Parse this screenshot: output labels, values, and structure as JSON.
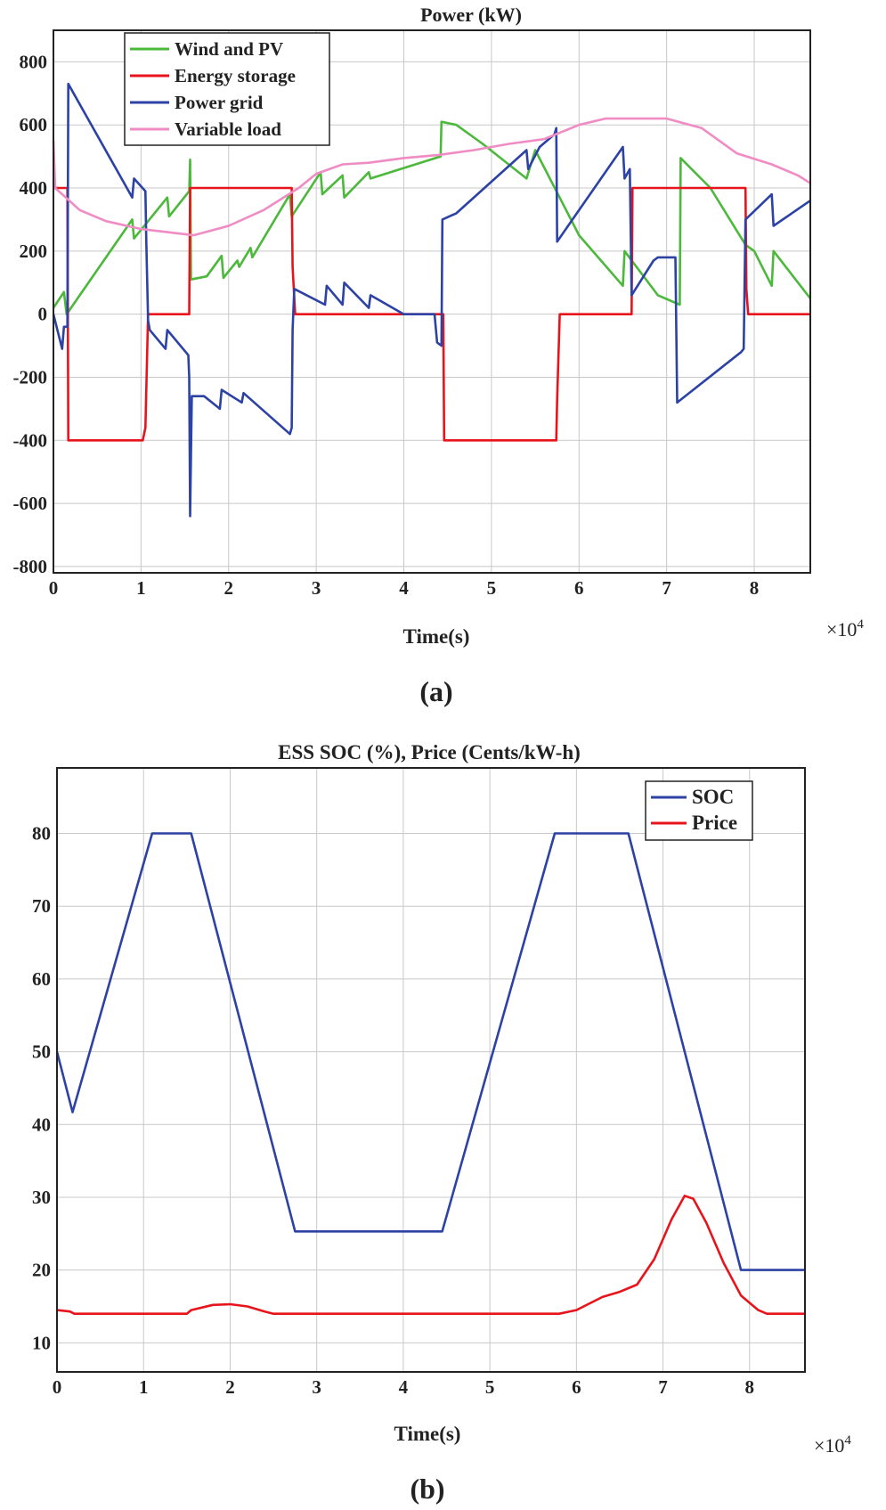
{
  "chart_data": [
    {
      "type": "line",
      "panel_label": "(a)",
      "title": "Power  (kW)",
      "xlabel": "Time(s)",
      "x_exponent_label": "×10",
      "x_exponent_power": "4",
      "xlim": [
        0,
        8.64
      ],
      "ylim": [
        -820,
        900
      ],
      "xticks": [
        0,
        1,
        2,
        3,
        4,
        5,
        6,
        7,
        8
      ],
      "xtick_labels": [
        "0",
        "1",
        "2",
        "3",
        "4",
        "5",
        "6",
        "7",
        "8"
      ],
      "yticks": [
        -800,
        -600,
        -400,
        -200,
        0,
        200,
        400,
        600,
        800
      ],
      "ytick_labels": [
        "-800",
        "-600",
        "-400",
        "-200",
        "0",
        "200",
        "400",
        "600",
        "800"
      ],
      "grid": true,
      "legend_position": "top-left",
      "series": [
        {
          "name": "Wind and PV",
          "color": "#4cb83c",
          "points": [
            [
              0,
              20
            ],
            [
              0.12,
              70
            ],
            [
              0.15,
              0
            ],
            [
              0.9,
              300
            ],
            [
              0.92,
              240
            ],
            [
              1.3,
              370
            ],
            [
              1.32,
              310
            ],
            [
              1.55,
              390
            ],
            [
              1.56,
              490
            ],
            [
              1.57,
              110
            ],
            [
              1.75,
              120
            ],
            [
              1.92,
              185
            ],
            [
              1.94,
              115
            ],
            [
              2.1,
              170
            ],
            [
              2.12,
              150
            ],
            [
              2.25,
              210
            ],
            [
              2.27,
              180
            ],
            [
              2.7,
              380
            ],
            [
              2.72,
              310
            ],
            [
              3.05,
              450
            ],
            [
              3.07,
              380
            ],
            [
              3.3,
              440
            ],
            [
              3.32,
              370
            ],
            [
              3.6,
              450
            ],
            [
              3.62,
              430
            ],
            [
              4.42,
              500
            ],
            [
              4.43,
              610
            ],
            [
              4.6,
              600
            ],
            [
              4.9,
              540
            ],
            [
              5.4,
              430
            ],
            [
              5.5,
              520
            ],
            [
              6.0,
              250
            ],
            [
              6.5,
              90
            ],
            [
              6.52,
              200
            ],
            [
              6.9,
              60
            ],
            [
              7.15,
              30
            ],
            [
              7.16,
              495
            ],
            [
              7.5,
              400
            ],
            [
              7.9,
              220
            ],
            [
              8.0,
              200
            ],
            [
              8.2,
              90
            ],
            [
              8.22,
              200
            ],
            [
              8.64,
              50
            ]
          ]
        },
        {
          "name": "Energy storage",
          "color": "#e8141c",
          "points": [
            [
              0,
              400
            ],
            [
              0.16,
              400
            ],
            [
              0.17,
              -400
            ],
            [
              1.02,
              -400
            ],
            [
              1.05,
              -360
            ],
            [
              1.08,
              0
            ],
            [
              1.55,
              0
            ],
            [
              1.56,
              400
            ],
            [
              2.72,
              400
            ],
            [
              2.73,
              150
            ],
            [
              2.76,
              0
            ],
            [
              4.45,
              0
            ],
            [
              4.46,
              -400
            ],
            [
              5.74,
              -400
            ],
            [
              5.75,
              -270
            ],
            [
              5.78,
              0
            ],
            [
              6.6,
              0
            ],
            [
              6.61,
              400
            ],
            [
              7.9,
              400
            ],
            [
              7.91,
              80
            ],
            [
              7.93,
              0
            ],
            [
              8.64,
              0
            ]
          ]
        },
        {
          "name": "Power grid",
          "color": "#2c42a4",
          "points": [
            [
              0,
              0
            ],
            [
              0.1,
              -110
            ],
            [
              0.12,
              -40
            ],
            [
              0.16,
              -40
            ],
            [
              0.17,
              730
            ],
            [
              0.9,
              370
            ],
            [
              0.92,
              430
            ],
            [
              1.05,
              390
            ],
            [
              1.06,
              230
            ],
            [
              1.08,
              -20
            ],
            [
              1.1,
              -50
            ],
            [
              1.28,
              -110
            ],
            [
              1.3,
              -50
            ],
            [
              1.54,
              -130
            ],
            [
              1.55,
              -200
            ],
            [
              1.56,
              -640
            ],
            [
              1.58,
              -260
            ],
            [
              1.72,
              -260
            ],
            [
              1.9,
              -300
            ],
            [
              1.92,
              -240
            ],
            [
              2.15,
              -280
            ],
            [
              2.17,
              -250
            ],
            [
              2.7,
              -380
            ],
            [
              2.72,
              -360
            ],
            [
              2.73,
              -50
            ],
            [
              2.75,
              80
            ],
            [
              3.1,
              30
            ],
            [
              3.12,
              90
            ],
            [
              3.3,
              30
            ],
            [
              3.32,
              100
            ],
            [
              3.6,
              20
            ],
            [
              3.62,
              60
            ],
            [
              4.0,
              0
            ],
            [
              4.35,
              0
            ],
            [
              4.38,
              -90
            ],
            [
              4.43,
              -100
            ],
            [
              4.44,
              300
            ],
            [
              4.6,
              320
            ],
            [
              5.4,
              520
            ],
            [
              5.42,
              460
            ],
            [
              5.55,
              530
            ],
            [
              5.72,
              570
            ],
            [
              5.74,
              590
            ],
            [
              5.75,
              230
            ],
            [
              6.5,
              530
            ],
            [
              6.52,
              430
            ],
            [
              6.58,
              460
            ],
            [
              6.6,
              60
            ],
            [
              6.85,
              170
            ],
            [
              6.9,
              180
            ],
            [
              7.1,
              180
            ],
            [
              7.12,
              -280
            ],
            [
              7.85,
              -120
            ],
            [
              7.88,
              -110
            ],
            [
              7.9,
              300
            ],
            [
              8.2,
              380
            ],
            [
              8.22,
              280
            ],
            [
              8.64,
              360
            ]
          ]
        },
        {
          "name": "Variable load",
          "color": "#f08cc4",
          "points": [
            [
              0,
              550
            ],
            [
              0.02,
              400
            ],
            [
              0.3,
              330
            ],
            [
              0.6,
              295
            ],
            [
              1.0,
              270
            ],
            [
              1.3,
              260
            ],
            [
              1.6,
              250
            ],
            [
              2.0,
              280
            ],
            [
              2.4,
              330
            ],
            [
              2.8,
              400
            ],
            [
              3.0,
              445
            ],
            [
              3.3,
              475
            ],
            [
              3.6,
              480
            ],
            [
              4.0,
              495
            ],
            [
              4.4,
              505
            ],
            [
              4.8,
              520
            ],
            [
              5.2,
              540
            ],
            [
              5.6,
              555
            ],
            [
              6.0,
              600
            ],
            [
              6.3,
              620
            ],
            [
              6.6,
              620
            ],
            [
              7.0,
              620
            ],
            [
              7.4,
              590
            ],
            [
              7.8,
              510
            ],
            [
              8.2,
              475
            ],
            [
              8.5,
              440
            ],
            [
              8.64,
              415
            ]
          ]
        }
      ]
    },
    {
      "type": "line",
      "panel_label": "(b)",
      "title": "ESS SOC (%), Price (Cents/kW-h)",
      "xlabel": "Time(s)",
      "x_exponent_label": "×10",
      "x_exponent_power": "4",
      "xlim": [
        0,
        8.64
      ],
      "ylim": [
        6,
        89
      ],
      "xticks": [
        0,
        1,
        2,
        3,
        4,
        5,
        6,
        7,
        8
      ],
      "xtick_labels": [
        "0",
        "1",
        "2",
        "3",
        "4",
        "5",
        "6",
        "7",
        "8"
      ],
      "yticks": [
        10,
        20,
        30,
        40,
        50,
        60,
        70,
        80
      ],
      "ytick_labels": [
        "10",
        "20",
        "30",
        "40",
        "50",
        "60",
        "70",
        "80"
      ],
      "grid": true,
      "legend_position": "top-right",
      "series": [
        {
          "name": "SOC",
          "color": "#2c42a4",
          "points": [
            [
              0,
              50
            ],
            [
              0.18,
              41.7
            ],
            [
              1.1,
              80
            ],
            [
              1.55,
              80
            ],
            [
              2.75,
              25.3
            ],
            [
              4.45,
              25.3
            ],
            [
              5.75,
              80
            ],
            [
              6.6,
              80
            ],
            [
              7.9,
              20
            ],
            [
              8.64,
              20
            ]
          ]
        },
        {
          "name": "Price",
          "color": "#e8141c",
          "points": [
            [
              0,
              14.5
            ],
            [
              0.15,
              14.3
            ],
            [
              0.2,
              14
            ],
            [
              1.5,
              14
            ],
            [
              1.55,
              14.5
            ],
            [
              1.8,
              15.2
            ],
            [
              2.0,
              15.3
            ],
            [
              2.2,
              15
            ],
            [
              2.4,
              14.3
            ],
            [
              2.5,
              14
            ],
            [
              5.8,
              14
            ],
            [
              6.0,
              14.5
            ],
            [
              6.3,
              16.3
            ],
            [
              6.5,
              17
            ],
            [
              6.7,
              18
            ],
            [
              6.9,
              21.5
            ],
            [
              7.1,
              27
            ],
            [
              7.25,
              30.2
            ],
            [
              7.35,
              29.8
            ],
            [
              7.5,
              26.5
            ],
            [
              7.7,
              21
            ],
            [
              7.9,
              16.5
            ],
            [
              8.1,
              14.5
            ],
            [
              8.2,
              14
            ],
            [
              8.64,
              14
            ]
          ]
        }
      ]
    }
  ]
}
